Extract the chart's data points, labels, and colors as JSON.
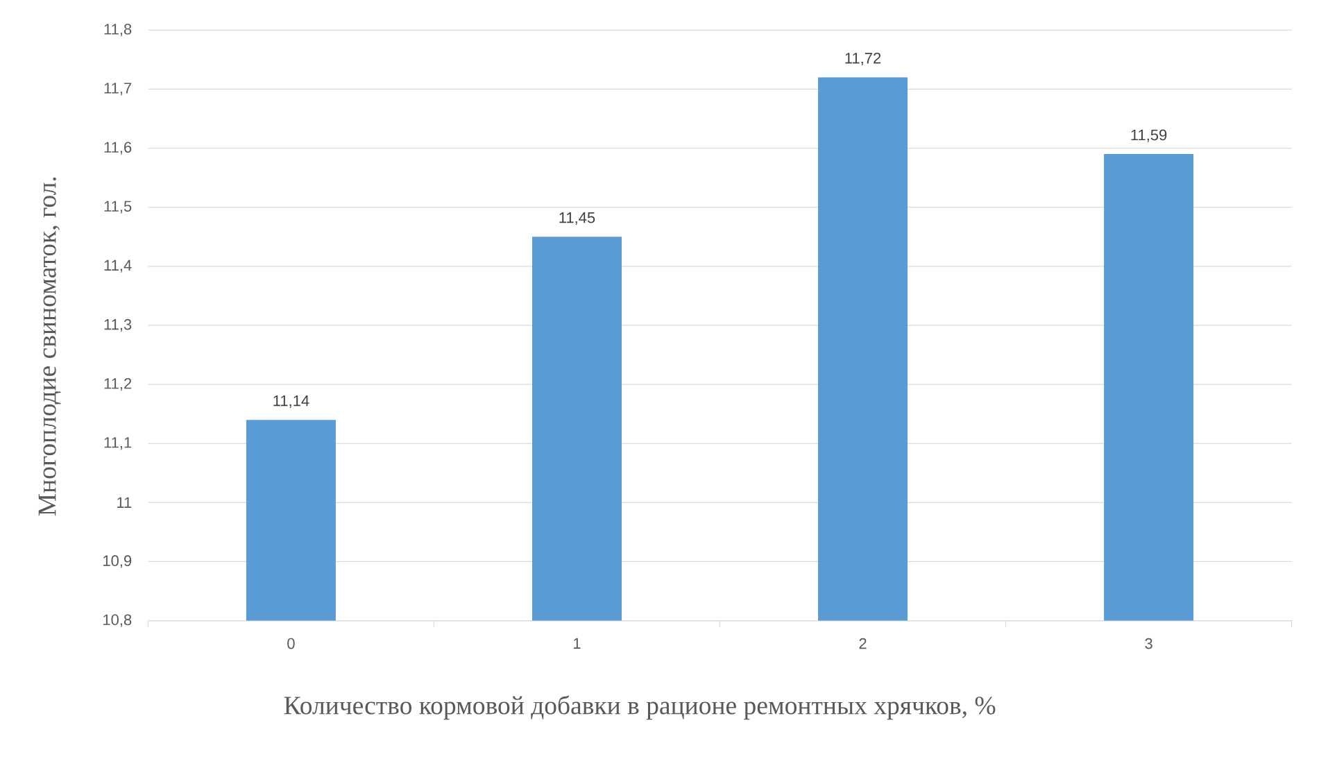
{
  "chart_data": {
    "type": "bar",
    "xlabel": "Количество кормовой добавки в рационе ремонтных хрячков, %",
    "ylabel": "Многоплодие свиноматок, гол.",
    "categories": [
      "0",
      "1",
      "2",
      "3"
    ],
    "values": [
      11.14,
      11.45,
      11.72,
      11.59
    ],
    "value_labels": [
      "11,14",
      "11,45",
      "11,72",
      "11,59"
    ],
    "color": "#5b9bd5",
    "ylim": [
      10.8,
      11.8
    ],
    "yticks": [
      {
        "value": 10.8,
        "label": "10,8"
      },
      {
        "value": 10.9,
        "label": "10,9"
      },
      {
        "value": 11,
        "label": "11"
      },
      {
        "value": 11.1,
        "label": "11,1"
      },
      {
        "value": 11.2,
        "label": "11,2"
      },
      {
        "value": 11.3,
        "label": "11,3"
      },
      {
        "value": 11.4,
        "label": "11,4"
      },
      {
        "value": 11.5,
        "label": "11,5"
      },
      {
        "value": 11.6,
        "label": "11,6"
      },
      {
        "value": 11.7,
        "label": "11,7"
      },
      {
        "value": 11.8,
        "label": "11,8"
      }
    ],
    "grid": "y"
  }
}
